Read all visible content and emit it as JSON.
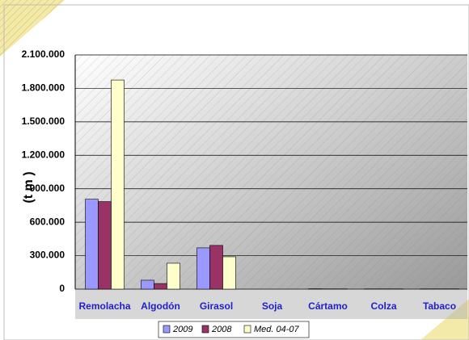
{
  "chart_data": {
    "type": "bar",
    "y_label": "(t m )",
    "categories": [
      "Remolacha",
      "Algodón",
      "Girasol",
      "Soja",
      "Cártamo",
      "Colza",
      "Tabaco"
    ],
    "series": [
      {
        "name": "2009",
        "color": "#9999ff",
        "values": [
          806000,
          80000,
          370000,
          0,
          3000,
          2000,
          2000
        ]
      },
      {
        "name": "2008",
        "color": "#993366",
        "values": [
          785000,
          50000,
          392000,
          0,
          2000,
          2000,
          2000
        ]
      },
      {
        "name": "Med. 04-07",
        "color": "#ffffcc",
        "values": [
          1875000,
          232000,
          290000,
          0,
          2000,
          2000,
          2000
        ]
      }
    ],
    "ylim": [
      0,
      2100000
    ],
    "yticks": [
      0,
      {
        "value": 300000,
        "label": "300.000"
      },
      {
        "value": 600000,
        "label": "600.000"
      },
      {
        "value": 900000,
        "label": "900.000"
      },
      {
        "value": 1200000,
        "label": "1.200.000"
      },
      {
        "value": 1500000,
        "label": "1.500.000"
      },
      {
        "value": 1800000,
        "label": "1.800.000"
      },
      {
        "value": 2100000,
        "label": "2.100.000"
      }
    ],
    "grid": true,
    "legend": "bottom"
  }
}
